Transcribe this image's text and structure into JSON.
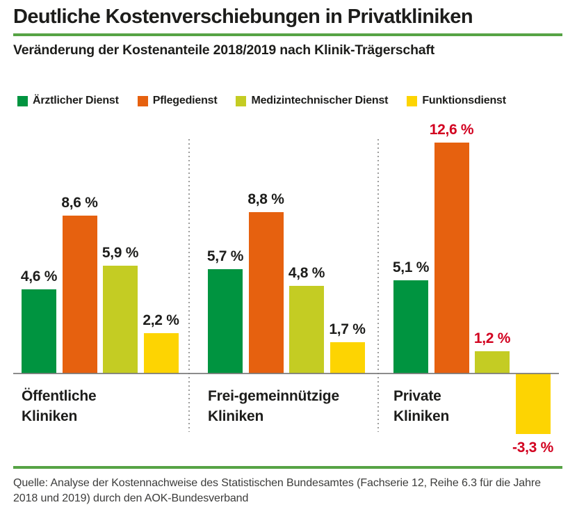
{
  "header": {
    "title": "Deutliche Kostenverschiebungen in Privatkliniken",
    "subtitle": "Veränderung der Kostenanteile 2018/2019 nach Klinik-Trägerschaft"
  },
  "legend": [
    {
      "label": "Ärztlicher Dienst",
      "color": "#009440"
    },
    {
      "label": "Pflegedienst",
      "color": "#e6610f"
    },
    {
      "label": "Medizintechnischer Dienst",
      "color": "#c4cc23"
    },
    {
      "label": "Funktionsdienst",
      "color": "#fdd402"
    }
  ],
  "chart_data": {
    "type": "bar",
    "title": "Deutliche Kostenverschiebungen in Privatkliniken",
    "subtitle": "Veränderung der Kostenanteile 2018/2019 nach Klinik-Trägerschaft",
    "unit": "%",
    "ylim": [
      -3.5,
      13
    ],
    "grid": false,
    "legend_position": "top",
    "series_names": [
      "Ärztlicher Dienst",
      "Pflegedienst",
      "Medizintechnischer Dienst",
      "Funktionsdienst"
    ],
    "series_colors": [
      "#009440",
      "#e6610f",
      "#c4cc23",
      "#fdd402"
    ],
    "categories": [
      "Öffentliche Kliniken",
      "Frei-gemeinnützige Kliniken",
      "Private Kliniken"
    ],
    "groups": [
      {
        "category": "Öffentliche Kliniken",
        "category_lines": [
          "Öffentliche",
          "Kliniken"
        ],
        "values": [
          4.6,
          8.6,
          5.9,
          2.2
        ],
        "value_labels": [
          "4,6 %",
          "8,6 %",
          "5,9 %",
          "2,2 %"
        ],
        "highlighted": [
          false,
          false,
          false,
          false
        ]
      },
      {
        "category": "Frei-gemeinnützige Kliniken",
        "category_lines": [
          "Frei-gemeinnützige",
          "Kliniken"
        ],
        "values": [
          5.7,
          8.8,
          4.8,
          1.7
        ],
        "value_labels": [
          "5,7 %",
          "8,8 %",
          "4,8 %",
          "1,7 %"
        ],
        "highlighted": [
          false,
          false,
          false,
          false
        ]
      },
      {
        "category": "Private Kliniken",
        "category_lines": [
          "Private",
          "Kliniken"
        ],
        "values": [
          5.1,
          12.6,
          1.2,
          -3.3
        ],
        "value_labels": [
          "5,1 %",
          "12,6 %",
          "1,2 %",
          "-3,3 %"
        ],
        "highlighted": [
          false,
          true,
          true,
          true
        ]
      }
    ],
    "label_color": "#1d1d1b",
    "highlight_color": "#d2001f"
  },
  "source": {
    "text": "Quelle: Analyse der Kostennachweise des Statistischen Bundesamtes (Fachserie 12, Reihe 6.3 für die Jahre 2018 und 2019) durch den AOK-Bundesverband"
  }
}
